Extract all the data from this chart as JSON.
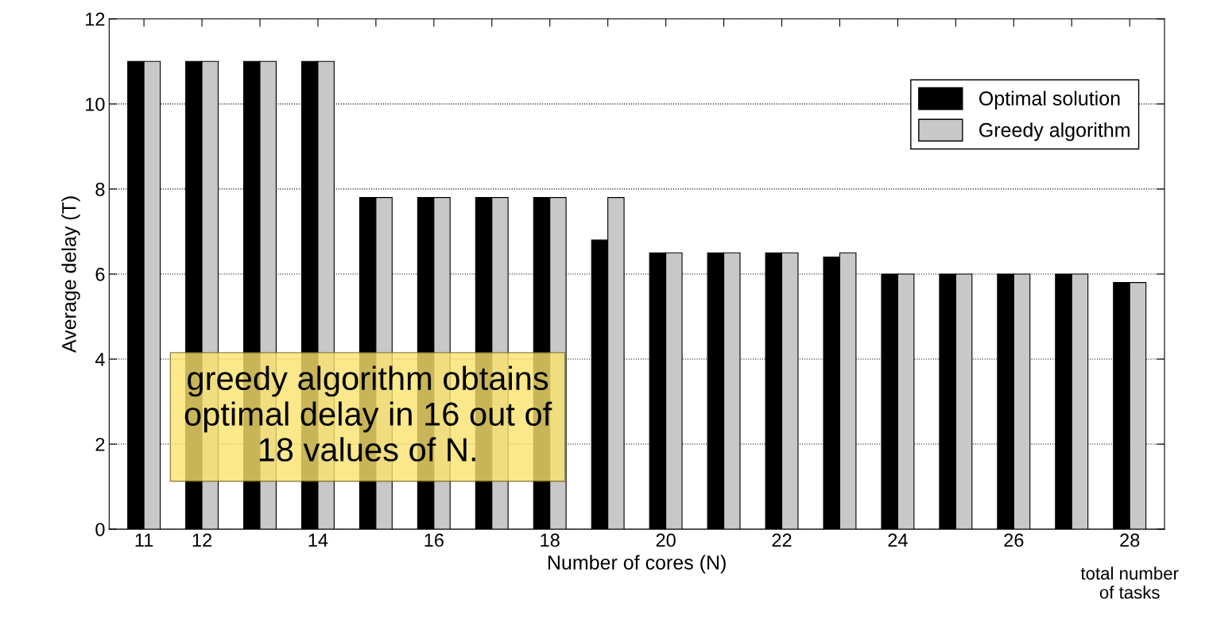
{
  "chart_data": {
    "type": "bar",
    "xlabel": "Number of cores (N)",
    "ylabel": "Average delay (T)",
    "categories": [
      "11",
      "12",
      null,
      "14",
      null,
      "16",
      null,
      "18",
      null,
      "20",
      null,
      "22",
      null,
      "24",
      null,
      "26",
      null,
      "28"
    ],
    "series": [
      {
        "name": "Optimal solution",
        "color": "#000000",
        "values": [
          11,
          11,
          11,
          11,
          7.8,
          7.8,
          7.8,
          7.8,
          6.8,
          6.5,
          6.5,
          6.5,
          6.4,
          6,
          6,
          6,
          6,
          5.8
        ]
      },
      {
        "name": "Greedy algorithm",
        "color": "#c8c8c8",
        "values": [
          11,
          11,
          11,
          11,
          7.8,
          7.8,
          7.8,
          7.8,
          7.8,
          6.5,
          6.5,
          6.5,
          6.5,
          6,
          6,
          6,
          6,
          5.8
        ]
      }
    ],
    "ylim": [
      0,
      12
    ],
    "yticks": [
      0,
      2,
      4,
      6,
      8,
      10,
      12
    ],
    "grid": "y",
    "legend": "top right",
    "annotations": [
      "greedy algorithm obtains\noptimal delay in 16 out of\n18 values of N.",
      "total number\nof tasks"
    ]
  }
}
